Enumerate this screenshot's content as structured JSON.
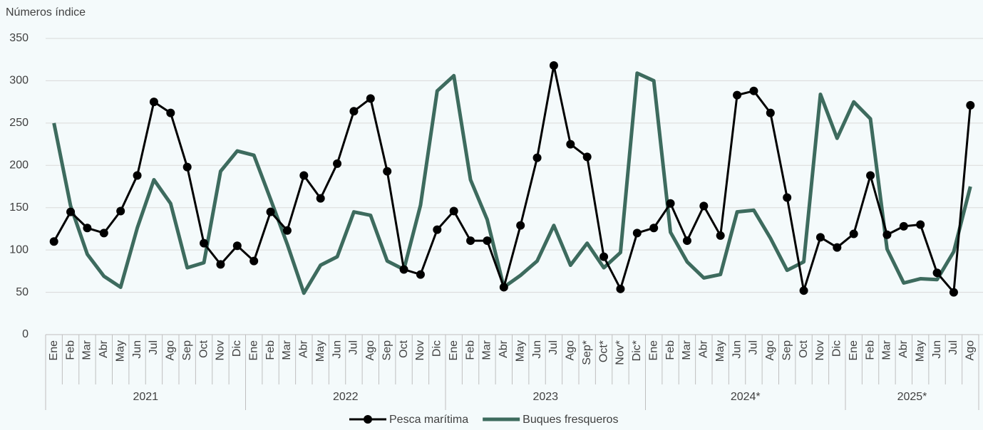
{
  "chart_data": {
    "type": "line",
    "y_label": "Números índice",
    "groups": [
      {
        "label": "2021",
        "categories": [
          "Ene",
          "Feb",
          "Mar",
          "Abr",
          "May",
          "Jun",
          "Jul",
          "Ago",
          "Sep",
          "Oct",
          "Nov",
          "Dic"
        ]
      },
      {
        "label": "2022",
        "categories": [
          "Ene",
          "Feb",
          "Mar",
          "Abr",
          "May",
          "Jun",
          "Jul",
          "Ago",
          "Sep",
          "Oct",
          "Nov",
          "Dic"
        ]
      },
      {
        "label": "2023",
        "categories": [
          "Ene",
          "Feb",
          "Mar",
          "Abr",
          "May",
          "Jun",
          "Jul",
          "Ago",
          "Sep*",
          "Oct*",
          "Nov*",
          "Dic*"
        ]
      },
      {
        "label": "2024*",
        "categories": [
          "Ene",
          "Feb",
          "Mar",
          "Abr",
          "May",
          "Jun",
          "Jul",
          "Ago",
          "Sep",
          "Oct",
          "Nov",
          "Dic"
        ]
      },
      {
        "label": "2025*",
        "categories": [
          "Ene",
          "Feb",
          "Mar",
          "Abr",
          "May",
          "Jun",
          "Jul",
          "Ago"
        ]
      }
    ],
    "series": [
      {
        "name": "Pesca marítima",
        "color": "#000000",
        "marker": "circle",
        "values": [
          110,
          145,
          126,
          120,
          146,
          188,
          275,
          262,
          198,
          108,
          83,
          105,
          87,
          145,
          123,
          188,
          161,
          202,
          264,
          279,
          193,
          77,
          71,
          124,
          146,
          111,
          111,
          56,
          129,
          209,
          318,
          225,
          210,
          92,
          54,
          120,
          126,
          155,
          111,
          152,
          117,
          283,
          288,
          262,
          162,
          52,
          115,
          103,
          119,
          188,
          118,
          128,
          130,
          73,
          50,
          271
        ]
      },
      {
        "name": "Buques fresqueros",
        "color": "#3d6b5e",
        "values": [
          250,
          152,
          95,
          69,
          56,
          126,
          183,
          155,
          79,
          85,
          193,
          217,
          212,
          160,
          107,
          49,
          82,
          92,
          145,
          141,
          87,
          77,
          153,
          288,
          306,
          183,
          136,
          56,
          70,
          87,
          129,
          82,
          108,
          79,
          97,
          309,
          300,
          121,
          86,
          67,
          71,
          145,
          147,
          114,
          76,
          86,
          284,
          232,
          275,
          255,
          101,
          61,
          66,
          65,
          98,
          175
        ]
      }
    ],
    "ylim": [
      0,
      350
    ],
    "yticks": [
      0,
      50,
      100,
      150,
      200,
      250,
      300,
      350
    ],
    "grid": true
  }
}
